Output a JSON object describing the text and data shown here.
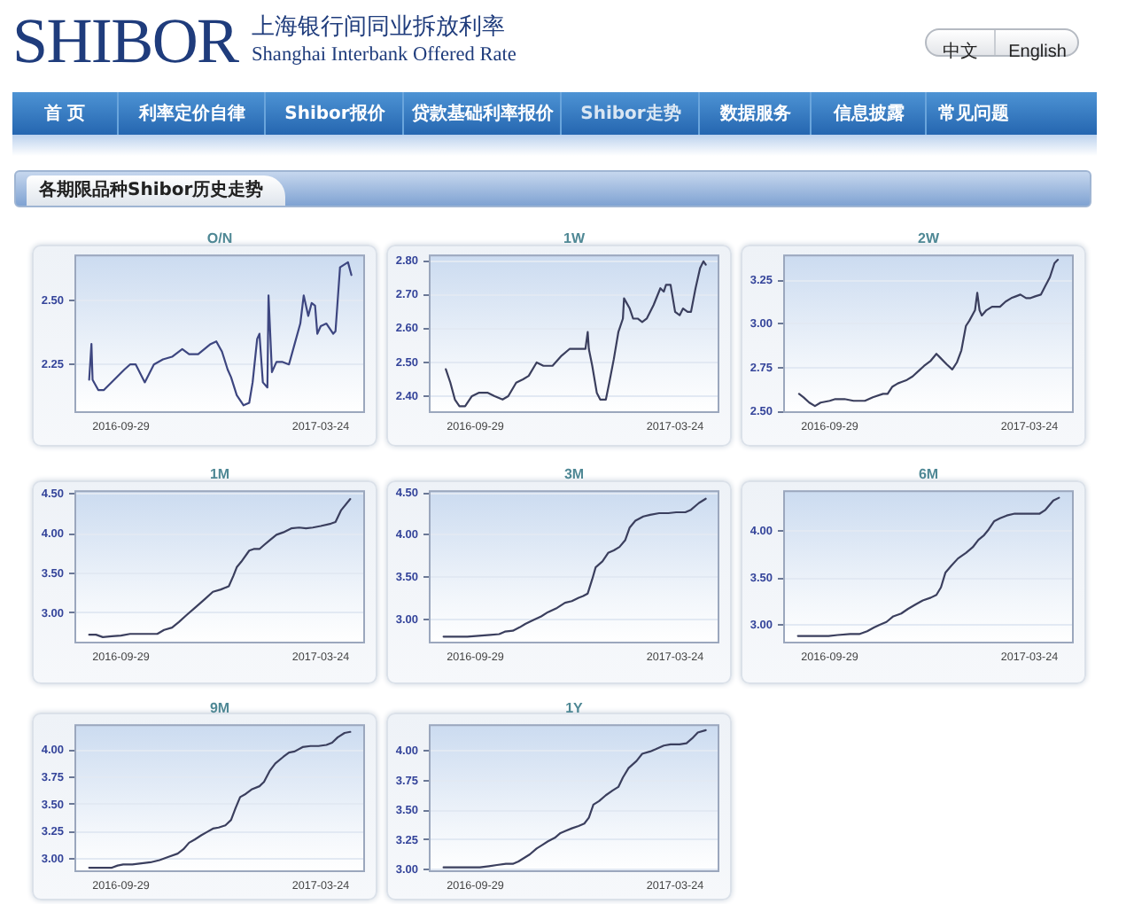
{
  "chart_data": [
    {
      "type": "other",
      "title": "SHIBOR",
      "subtitle": "上海银行间同业拆放利率",
      "annotations": [
        "Shanghai Interbank Offered Rate",
        "中文",
        "English",
        "首 页",
        "利率定价自律",
        "Shibor报价",
        "贷款基础利率报价",
        "Shibor走势",
        "数据服务",
        "信息披露",
        "常见问题",
        "各期限品种Shibor历史走势"
      ]
    },
    {
      "type": "line",
      "title": "O/N",
      "color": "#3d4680",
      "x": [
        "2016-09-01",
        "2016-09-03",
        "2016-09-04",
        "2016-09-09",
        "2016-09-14",
        "2016-10-02",
        "2016-10-07",
        "2016-10-12",
        "2016-10-20",
        "2016-10-28",
        "2016-11-05",
        "2016-11-13",
        "2016-11-22",
        "2016-11-28",
        "2016-12-06",
        "2016-12-17",
        "2016-12-22",
        "2016-12-27",
        "2017-01-01",
        "2017-01-04",
        "2017-01-09",
        "2017-01-15",
        "2017-01-20",
        "2017-01-23",
        "2017-01-27",
        "2017-01-29",
        "2017-02-01",
        "2017-02-05",
        "2017-02-06",
        "2017-02-09",
        "2017-02-13",
        "2017-02-18",
        "2017-02-24",
        "2017-03-01",
        "2017-03-06",
        "2017-03-09",
        "2017-03-13",
        "2017-03-16",
        "2017-03-19",
        "2017-03-21",
        "2017-03-24",
        "2017-03-29",
        "2017-04-04",
        "2017-04-06",
        "2017-04-10",
        "2017-04-17",
        "2017-04-20"
      ],
      "values": [
        2.19,
        2.33,
        2.19,
        2.15,
        2.15,
        2.23,
        2.25,
        2.25,
        2.18,
        2.25,
        2.27,
        2.28,
        2.31,
        2.29,
        2.29,
        2.33,
        2.34,
        2.3,
        2.23,
        2.2,
        2.13,
        2.09,
        2.1,
        2.18,
        2.35,
        2.37,
        2.18,
        2.16,
        2.52,
        2.22,
        2.26,
        2.26,
        2.25,
        2.33,
        2.41,
        2.52,
        2.44,
        2.49,
        2.48,
        2.37,
        2.4,
        2.41,
        2.37,
        2.38,
        2.63,
        2.65,
        2.6
      ],
      "xlim": [
        "2016-08-19",
        "2017-05-02"
      ],
      "xticks": [
        "2016-09-29",
        "2017-03-24"
      ],
      "ylim": [
        2.06,
        2.68
      ],
      "yticks": [
        2.25,
        {
          "value": 2.5,
          "label": "2.50"
        }
      ],
      "grid": "y",
      "marker": "none"
    },
    {
      "type": "line",
      "title": "1W",
      "color": "#3b3f5e",
      "x": [
        "2016-09-03",
        "2016-09-07",
        "2016-09-11",
        "2016-09-15",
        "2016-09-20",
        "2016-09-26",
        "2016-10-02",
        "2016-10-10",
        "2016-10-16",
        "2016-10-23",
        "2016-10-28",
        "2016-11-04",
        "2016-11-10",
        "2016-11-15",
        "2016-11-22",
        "2016-11-28",
        "2016-12-06",
        "2016-12-14",
        "2016-12-21",
        "2017-01-02",
        "2017-01-04",
        "2017-01-06",
        "2017-01-07",
        "2017-01-10",
        "2017-01-14",
        "2017-01-17",
        "2017-01-22",
        "2017-01-25",
        "2017-01-29",
        "2017-02-02",
        "2017-02-06",
        "2017-02-07",
        "2017-02-12",
        "2017-02-15",
        "2017-02-19",
        "2017-02-23",
        "2017-02-27",
        "2017-03-05",
        "2017-03-11",
        "2017-03-14",
        "2017-03-16",
        "2017-03-20",
        "2017-03-24",
        "2017-03-28",
        "2017-03-31",
        "2017-04-04",
        "2017-04-07",
        "2017-04-11",
        "2017-04-15",
        "2017-04-18",
        "2017-04-20"
      ],
      "values": [
        2.48,
        2.44,
        2.39,
        2.37,
        2.37,
        2.4,
        2.41,
        2.41,
        2.4,
        2.39,
        2.4,
        2.44,
        2.45,
        2.46,
        2.5,
        2.49,
        2.49,
        2.52,
        2.54,
        2.54,
        2.54,
        2.59,
        2.54,
        2.49,
        2.41,
        2.39,
        2.39,
        2.44,
        2.51,
        2.59,
        2.63,
        2.69,
        2.66,
        2.63,
        2.63,
        2.62,
        2.63,
        2.67,
        2.72,
        2.71,
        2.73,
        2.73,
        2.65,
        2.64,
        2.66,
        2.65,
        2.65,
        2.72,
        2.78,
        2.8,
        2.79
      ],
      "xlim": [
        "2016-08-19",
        "2017-05-02"
      ],
      "xticks": [
        "2016-09-29",
        "2017-03-24"
      ],
      "ylim": [
        2.35,
        2.82
      ],
      "yticks": [
        {
          "value": 2.4,
          "label": "2.40"
        },
        {
          "value": 2.5,
          "label": "2.50"
        },
        {
          "value": 2.6,
          "label": "2.60"
        },
        {
          "value": 2.7,
          "label": "2.70"
        },
        {
          "value": 2.8,
          "label": "2.80"
        }
      ],
      "grid": "y",
      "marker": "none"
    },
    {
      "type": "line",
      "title": "2W",
      "color": "#3b3f5e",
      "x": [
        "2016-09-02",
        "2016-09-06",
        "2016-09-11",
        "2016-09-16",
        "2016-09-21",
        "2016-09-29",
        "2016-10-04",
        "2016-10-12",
        "2016-10-20",
        "2016-10-25",
        "2016-10-30",
        "2016-11-06",
        "2016-11-15",
        "2016-11-19",
        "2016-11-23",
        "2016-11-28",
        "2016-12-06",
        "2016-12-11",
        "2016-12-16",
        "2016-12-21",
        "2016-12-27",
        "2017-01-01",
        "2017-01-04",
        "2017-01-10",
        "2017-01-15",
        "2017-01-19",
        "2017-01-23",
        "2017-01-27",
        "2017-01-30",
        "2017-02-04",
        "2017-02-06",
        "2017-02-08",
        "2017-02-10",
        "2017-02-14",
        "2017-02-19",
        "2017-02-26",
        "2017-03-03",
        "2017-03-08",
        "2017-03-12",
        "2017-03-16",
        "2017-03-21",
        "2017-03-25",
        "2017-03-29",
        "2017-04-03",
        "2017-04-07",
        "2017-04-11",
        "2017-04-15",
        "2017-04-18"
      ],
      "values": [
        2.6,
        2.58,
        2.55,
        2.53,
        2.55,
        2.56,
        2.57,
        2.57,
        2.56,
        2.56,
        2.56,
        2.58,
        2.6,
        2.6,
        2.64,
        2.66,
        2.68,
        2.7,
        2.73,
        2.76,
        2.79,
        2.83,
        2.81,
        2.77,
        2.74,
        2.78,
        2.85,
        2.99,
        3.02,
        3.08,
        3.18,
        3.08,
        3.05,
        3.08,
        3.1,
        3.1,
        3.13,
        3.15,
        3.16,
        3.17,
        3.15,
        3.15,
        3.16,
        3.17,
        3.22,
        3.27,
        3.35,
        3.37
      ],
      "xlim": [
        "2016-08-19",
        "2017-05-02"
      ],
      "xticks": [
        "2016-09-29",
        "2017-03-24"
      ],
      "ylim": [
        2.49,
        3.4
      ],
      "yticks": [
        {
          "value": 2.5,
          "label": "2.50"
        },
        2.75,
        {
          "value": 3,
          "label": "3.00"
        },
        3.25
      ],
      "grid": "y",
      "marker": "none"
    },
    {
      "type": "line",
      "title": "1M",
      "color": "#3b3f5e",
      "x": [
        "2016-09-01",
        "2016-09-07",
        "2016-09-13",
        "2016-09-21",
        "2016-09-29",
        "2016-10-07",
        "2016-10-15",
        "2016-10-23",
        "2016-10-31",
        "2016-11-06",
        "2016-11-13",
        "2016-11-19",
        "2016-11-26",
        "2016-12-04",
        "2016-12-12",
        "2016-12-19",
        "2016-12-26",
        "2017-01-02",
        "2017-01-06",
        "2017-01-09",
        "2017-01-13",
        "2017-01-20",
        "2017-01-24",
        "2017-01-29",
        "2017-02-02",
        "2017-02-07",
        "2017-02-13",
        "2017-02-19",
        "2017-02-26",
        "2017-03-05",
        "2017-03-11",
        "2017-03-17",
        "2017-03-24",
        "2017-04-02",
        "2017-04-06",
        "2017-04-11",
        "2017-04-19"
      ],
      "values": [
        2.73,
        2.73,
        2.7,
        2.71,
        2.72,
        2.74,
        2.74,
        2.74,
        2.74,
        2.79,
        2.82,
        2.89,
        2.98,
        3.08,
        3.18,
        3.27,
        3.3,
        3.34,
        3.47,
        3.58,
        3.65,
        3.79,
        3.81,
        3.81,
        3.86,
        3.92,
        3.99,
        4.02,
        4.07,
        4.08,
        4.07,
        4.08,
        4.1,
        4.13,
        4.15,
        4.3,
        4.44
      ],
      "xlim": [
        "2016-08-19",
        "2017-05-02"
      ],
      "xticks": [
        "2016-09-29",
        "2017-03-24"
      ],
      "ylim": [
        2.62,
        4.55
      ],
      "yticks": [
        {
          "value": 3,
          "label": "3.00"
        },
        {
          "value": 3.5,
          "label": "3.50"
        },
        {
          "value": 4,
          "label": "4.00"
        },
        {
          "value": 4.5,
          "label": "4.50"
        }
      ],
      "grid": "y",
      "marker": "none"
    },
    {
      "type": "line",
      "title": "3M",
      "color": "#3b3f5e",
      "x": [
        "2016-09-01",
        "2016-09-11",
        "2016-09-22",
        "2016-10-02",
        "2016-10-12",
        "2016-10-20",
        "2016-10-25",
        "2016-11-01",
        "2016-11-07",
        "2016-11-12",
        "2016-11-18",
        "2016-11-26",
        "2016-12-02",
        "2016-12-10",
        "2016-12-17",
        "2016-12-23",
        "2016-12-29",
        "2017-01-02",
        "2017-01-06",
        "2017-01-10",
        "2017-01-13",
        "2017-01-19",
        "2017-01-24",
        "2017-01-29",
        "2017-02-03",
        "2017-02-08",
        "2017-02-12",
        "2017-02-17",
        "2017-02-24",
        "2017-03-02",
        "2017-03-10",
        "2017-03-18",
        "2017-03-25",
        "2017-04-02",
        "2017-04-07",
        "2017-04-14",
        "2017-04-20"
      ],
      "values": [
        2.8,
        2.8,
        2.8,
        2.81,
        2.82,
        2.83,
        2.86,
        2.87,
        2.91,
        2.95,
        2.99,
        3.04,
        3.09,
        3.14,
        3.2,
        3.22,
        3.26,
        3.28,
        3.31,
        3.48,
        3.62,
        3.69,
        3.79,
        3.82,
        3.86,
        3.94,
        4.09,
        4.17,
        4.22,
        4.24,
        4.26,
        4.26,
        4.27,
        4.27,
        4.3,
        4.38,
        4.43
      ],
      "xlim": [
        "2016-08-19",
        "2017-05-02"
      ],
      "xticks": [
        "2016-09-29",
        "2017-03-24"
      ],
      "ylim": [
        2.72,
        4.53
      ],
      "yticks": [
        {
          "value": 3,
          "label": "3.00"
        },
        {
          "value": 3.5,
          "label": "3.50"
        },
        {
          "value": 4,
          "label": "4.00"
        },
        {
          "value": 4.5,
          "label": "4.50"
        }
      ],
      "grid": "y",
      "marker": "none"
    },
    {
      "type": "line",
      "title": "6M",
      "color": "#3b3f5e",
      "x": [
        "2016-09-01",
        "2016-09-10",
        "2016-09-20",
        "2016-09-28",
        "2016-10-06",
        "2016-10-17",
        "2016-10-25",
        "2016-11-01",
        "2016-11-07",
        "2016-11-12",
        "2016-11-18",
        "2016-11-24",
        "2016-12-01",
        "2016-12-07",
        "2016-12-14",
        "2016-12-20",
        "2016-12-27",
        "2017-01-01",
        "2017-01-05",
        "2017-01-09",
        "2017-01-14",
        "2017-01-20",
        "2017-01-27",
        "2017-02-02",
        "2017-02-07",
        "2017-02-12",
        "2017-02-16",
        "2017-02-21",
        "2017-02-26",
        "2017-03-04",
        "2017-03-11",
        "2017-03-18",
        "2017-03-26",
        "2017-04-02",
        "2017-04-07",
        "2017-04-14",
        "2017-04-19"
      ],
      "values": [
        2.88,
        2.88,
        2.88,
        2.88,
        2.89,
        2.9,
        2.9,
        2.93,
        2.97,
        3.0,
        3.03,
        3.09,
        3.12,
        3.17,
        3.22,
        3.26,
        3.29,
        3.32,
        3.4,
        3.56,
        3.63,
        3.71,
        3.77,
        3.83,
        3.91,
        3.96,
        4.02,
        4.11,
        4.14,
        4.17,
        4.19,
        4.19,
        4.19,
        4.19,
        4.23,
        4.33,
        4.36
      ],
      "xlim": [
        "2016-08-19",
        "2017-05-02"
      ],
      "xticks": [
        "2016-09-29",
        "2017-03-24"
      ],
      "ylim": [
        2.8,
        4.44
      ],
      "yticks": [
        {
          "value": 3,
          "label": "3.00"
        },
        {
          "value": 3.5,
          "label": "3.50"
        },
        {
          "value": 4,
          "label": "4.00"
        }
      ],
      "grid": "y",
      "marker": "none"
    },
    {
      "type": "line",
      "title": "9M",
      "color": "#3b3f5e",
      "x": [
        "2016-09-01",
        "2016-09-10",
        "2016-09-21",
        "2016-09-26",
        "2016-10-01",
        "2016-10-09",
        "2016-10-17",
        "2016-10-25",
        "2016-11-02",
        "2016-11-10",
        "2016-11-18",
        "2016-11-23",
        "2016-11-28",
        "2016-12-03",
        "2016-12-09",
        "2016-12-14",
        "2016-12-19",
        "2016-12-24",
        "2016-12-30",
        "2017-01-04",
        "2017-01-08",
        "2017-01-12",
        "2017-01-17",
        "2017-01-22",
        "2017-01-29",
        "2017-02-02",
        "2017-02-07",
        "2017-02-12",
        "2017-02-19",
        "2017-02-24",
        "2017-03-01",
        "2017-03-08",
        "2017-03-15",
        "2017-03-22",
        "2017-03-29",
        "2017-04-03",
        "2017-04-08",
        "2017-04-14",
        "2017-04-19"
      ],
      "values": [
        2.92,
        2.92,
        2.92,
        2.94,
        2.95,
        2.95,
        2.96,
        2.97,
        2.99,
        3.02,
        3.05,
        3.09,
        3.15,
        3.18,
        3.22,
        3.25,
        3.28,
        3.29,
        3.31,
        3.36,
        3.47,
        3.57,
        3.6,
        3.64,
        3.67,
        3.71,
        3.81,
        3.88,
        3.94,
        3.98,
        3.99,
        4.03,
        4.04,
        4.04,
        4.05,
        4.07,
        4.12,
        4.16,
        4.17
      ],
      "xlim": [
        "2016-08-19",
        "2017-05-02"
      ],
      "xticks": [
        "2016-09-29",
        "2017-03-24"
      ],
      "ylim": [
        2.88,
        4.24
      ],
      "yticks": [
        {
          "value": 3,
          "label": "3.00"
        },
        3.25,
        {
          "value": 3.5,
          "label": "3.50"
        },
        3.75,
        {
          "value": 4,
          "label": "4.00"
        }
      ],
      "grid": "y",
      "marker": "none"
    },
    {
      "type": "line",
      "title": "1Y",
      "color": "#3b3f5e",
      "x": [
        "2016-09-01",
        "2016-09-12",
        "2016-09-22",
        "2016-10-03",
        "2016-10-11",
        "2016-10-18",
        "2016-10-26",
        "2016-11-01",
        "2016-11-06",
        "2016-11-11",
        "2016-11-16",
        "2016-11-22",
        "2016-11-27",
        "2016-12-02",
        "2016-12-08",
        "2016-12-13",
        "2016-12-18",
        "2016-12-23",
        "2016-12-29",
        "2017-01-03",
        "2017-01-07",
        "2017-01-11",
        "2017-01-16",
        "2017-01-22",
        "2017-01-28",
        "2017-02-02",
        "2017-02-06",
        "2017-02-11",
        "2017-02-18",
        "2017-02-23",
        "2017-03-02",
        "2017-03-07",
        "2017-03-14",
        "2017-03-20",
        "2017-03-28",
        "2017-04-03",
        "2017-04-08",
        "2017-04-13",
        "2017-04-20"
      ],
      "values": [
        3.02,
        3.02,
        3.02,
        3.02,
        3.03,
        3.04,
        3.05,
        3.05,
        3.07,
        3.1,
        3.13,
        3.18,
        3.21,
        3.24,
        3.27,
        3.31,
        3.33,
        3.35,
        3.37,
        3.39,
        3.44,
        3.55,
        3.58,
        3.63,
        3.67,
        3.7,
        3.78,
        3.86,
        3.92,
        3.98,
        4.0,
        4.02,
        4.05,
        4.06,
        4.06,
        4.07,
        4.11,
        4.16,
        4.18
      ],
      "xlim": [
        "2016-08-19",
        "2017-05-02"
      ],
      "xticks": [
        "2016-09-29",
        "2017-03-24"
      ],
      "ylim": [
        2.98,
        4.23
      ],
      "yticks": [
        {
          "value": 3,
          "label": "3.00"
        },
        3.25,
        {
          "value": 3.5,
          "label": "3.50"
        },
        3.75,
        {
          "value": 4,
          "label": "4.00"
        }
      ],
      "grid": "y",
      "marker": "none"
    }
  ]
}
